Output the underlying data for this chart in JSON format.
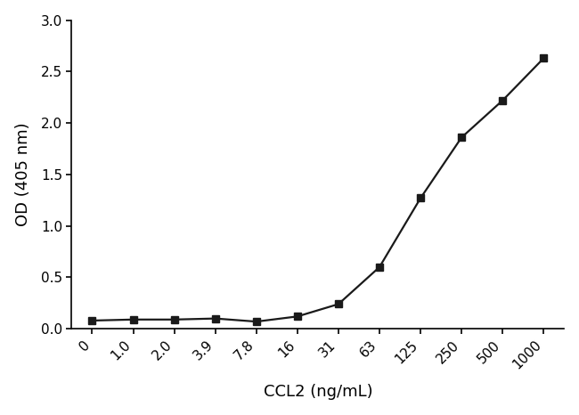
{
  "x_labels": [
    "0",
    "1.0",
    "2.0",
    "3.9",
    "7.8",
    "16",
    "31",
    "63",
    "125",
    "250",
    "500",
    "1000"
  ],
  "y_data": [
    0.08,
    0.09,
    0.09,
    0.1,
    0.07,
    0.12,
    0.24,
    0.6,
    1.27,
    1.86,
    2.22,
    2.63
  ],
  "xlabel": "CCL2 (ng/mL)",
  "ylabel": "OD (405 nm)",
  "ylim": [
    0,
    3.0
  ],
  "yticks": [
    0.0,
    0.5,
    1.0,
    1.5,
    2.0,
    2.5,
    3.0
  ],
  "line_color": "#1a1a1a",
  "marker": "s",
  "marker_size": 6,
  "marker_color": "#1a1a1a",
  "line_width": 1.6,
  "background_color": "#ffffff",
  "xlabel_fontsize": 13,
  "ylabel_fontsize": 13,
  "tick_fontsize": 11
}
